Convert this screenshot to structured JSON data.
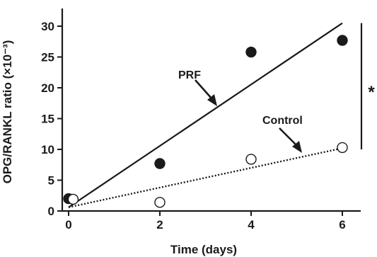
{
  "chart_data": {
    "type": "scatter",
    "xlabel": "Time (days)",
    "ylabel": "OPG/RANKL ratio (×10⁻³)",
    "xlim": [
      0,
      6
    ],
    "ylim": [
      0,
      30
    ],
    "xticks": [
      "0",
      "2",
      "4",
      "6"
    ],
    "yticks": [
      "0",
      "5",
      "10",
      "15",
      "20",
      "25",
      "30"
    ],
    "xtick_values": [
      0,
      2,
      4,
      6
    ],
    "ytick_values": [
      0,
      5,
      10,
      15,
      20,
      25,
      30
    ],
    "series": [
      {
        "name": "PRF",
        "marker": "filled-circle",
        "points": [
          [
            0,
            2.0
          ],
          [
            2,
            7.7
          ],
          [
            4,
            25.8
          ],
          [
            6,
            27.7
          ]
        ],
        "fit": [
          [
            0,
            0.6
          ],
          [
            6,
            30.5
          ]
        ],
        "line_style": "solid"
      },
      {
        "name": "Control",
        "marker": "open-circle",
        "points": [
          [
            0.1,
            1.9
          ],
          [
            2,
            1.4
          ],
          [
            4,
            8.4
          ],
          [
            6,
            10.3
          ]
        ],
        "fit": [
          [
            0,
            0.6
          ],
          [
            6,
            10.2
          ]
        ],
        "line_style": "dotted"
      }
    ],
    "significance_marker": "*",
    "significance_range": [
      10,
      30.5
    ],
    "grid": false,
    "color": "#1a1a1a"
  }
}
